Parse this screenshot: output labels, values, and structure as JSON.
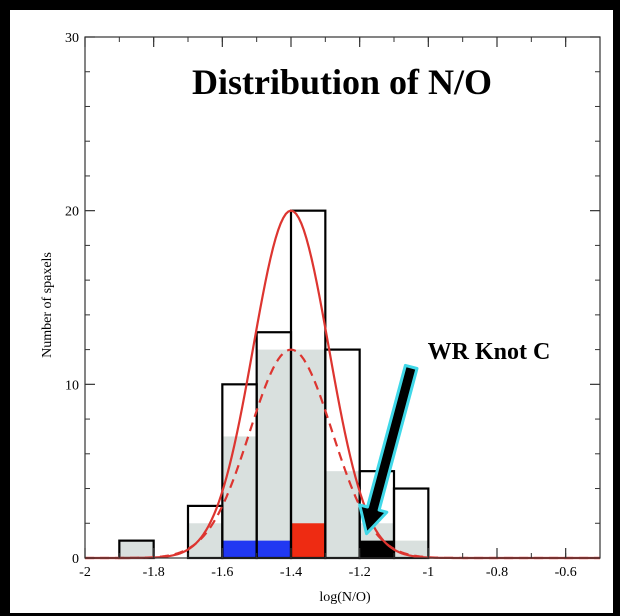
{
  "chart_data": {
    "type": "bar",
    "title": "Distribution of N/O",
    "xlabel": "log(N/O)",
    "ylabel": "Number of spaxels",
    "xlim": [
      -2,
      -0.5
    ],
    "ylim": [
      0,
      30
    ],
    "x_ticks": [
      -2,
      -1.8,
      -1.6,
      -1.4,
      -1.2,
      -1,
      -0.8,
      -0.6
    ],
    "y_ticks": [
      0,
      10,
      20,
      30
    ],
    "bin_width": 0.1,
    "series": [
      {
        "name": "all spaxels",
        "style": "outline",
        "color": "#000000",
        "bins": [
          {
            "x0": -1.9,
            "value": 1
          },
          {
            "x0": -1.7,
            "value": 3
          },
          {
            "x0": -1.6,
            "value": 10
          },
          {
            "x0": -1.5,
            "value": 13
          },
          {
            "x0": -1.4,
            "value": 20
          },
          {
            "x0": -1.3,
            "value": 12
          },
          {
            "x0": -1.2,
            "value": 5
          },
          {
            "x0": -1.1,
            "value": 4
          }
        ]
      },
      {
        "name": "subset",
        "style": "filled",
        "color": "#d9e0de",
        "bins": [
          {
            "x0": -1.9,
            "value": 1
          },
          {
            "x0": -1.7,
            "value": 2
          },
          {
            "x0": -1.6,
            "value": 7
          },
          {
            "x0": -1.5,
            "value": 12
          },
          {
            "x0": -1.4,
            "value": 12
          },
          {
            "x0": -1.3,
            "value": 5
          },
          {
            "x0": -1.2,
            "value": 2
          },
          {
            "x0": -1.1,
            "value": 1
          }
        ]
      },
      {
        "name": "blue",
        "style": "filled",
        "color": "#2138f2",
        "bins": [
          {
            "x0": -1.6,
            "value": 1
          },
          {
            "x0": -1.5,
            "value": 1
          },
          {
            "x0": -1.4,
            "value": 1
          }
        ]
      },
      {
        "name": "red",
        "style": "filled",
        "color": "#ee2b12",
        "bins": [
          {
            "x0": -1.4,
            "value": 2
          }
        ]
      },
      {
        "name": "black",
        "style": "filled",
        "color": "#000000",
        "bins": [
          {
            "x0": -1.2,
            "value": 1
          }
        ]
      }
    ],
    "curves": [
      {
        "style": "solid",
        "color": "#dd3530",
        "amplitude": 20,
        "mean": -1.4,
        "sigma": 0.11
      },
      {
        "style": "dashed",
        "color": "#dd3530",
        "amplitude": 12,
        "mean": -1.4,
        "sigma": 0.12
      }
    ],
    "annotation": {
      "text": "WR Knot C",
      "arrow_color": "#40d8e8",
      "arrow_from": [
        -1.05,
        11
      ],
      "arrow_to": [
        -1.18,
        1.4
      ]
    }
  }
}
